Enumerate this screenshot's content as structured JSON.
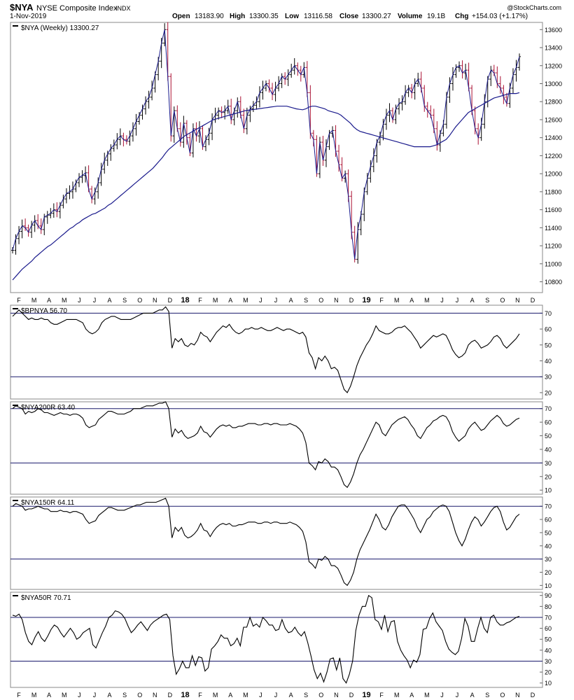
{
  "header": {
    "symbol": "$NYA",
    "name": "NYSE Composite Index",
    "exchange": "INDX",
    "date": "1-Nov-2019",
    "open_label": "Open",
    "open": "13183.90",
    "high_label": "High",
    "high": "13300.35",
    "low_label": "Low",
    "low": "13116.58",
    "close_label": "Close",
    "close": "13300.27",
    "volume_label": "Volume",
    "volume": "19.1B",
    "chg_label": "Chg",
    "chg": "+154.03 (+1.17%)",
    "watermark": "@StockCharts.com"
  },
  "colors": {
    "price_up": "#000000",
    "price_down": "#aa1133",
    "moving_average": "#1a1a8c",
    "price_line": "#1a1a8c",
    "reference_lines": "#1a1a6c",
    "indicator_line": "#000000",
    "panel_border": "#888888"
  },
  "x_axis": {
    "months": [
      "F",
      "M",
      "A",
      "M",
      "J",
      "J",
      "A",
      "S",
      "O",
      "N",
      "D",
      "18",
      "F",
      "M",
      "A",
      "M",
      "J",
      "J",
      "A",
      "S",
      "O",
      "N",
      "D",
      "19",
      "F",
      "M",
      "A",
      "M",
      "J",
      "J",
      "A",
      "S",
      "O",
      "N",
      "D"
    ]
  },
  "chart_data": [
    {
      "type": "line",
      "subtype": "weekly-ohlc-with-moving-average",
      "title": "$NYA (Weekly) 13300.27",
      "y_ticks": [
        10800,
        11000,
        11200,
        11400,
        11600,
        11800,
        12000,
        12200,
        12400,
        12600,
        12800,
        13000,
        13200,
        13400,
        13600
      ],
      "ylim": [
        10680,
        13680
      ],
      "grid": false,
      "series": [
        {
          "role": "price",
          "values": [
            11150,
            11280,
            11360,
            11420,
            11400,
            11350,
            11430,
            11480,
            11420,
            11380,
            11520,
            11540,
            11560,
            11600,
            11580,
            11650,
            11720,
            11780,
            11800,
            11830,
            11900,
            11960,
            11980,
            12010,
            11830,
            11720,
            11800,
            11900,
            12050,
            12150,
            12220,
            12280,
            12320,
            12380,
            12420,
            12380,
            12360,
            12420,
            12500,
            12580,
            12650,
            12720,
            12800,
            12850,
            12950,
            13100,
            13250,
            13450,
            13600,
            13080,
            12420,
            12700,
            12500,
            12350,
            12560,
            12400,
            12230,
            12500,
            12420,
            12500,
            12300,
            12380,
            12450,
            12600,
            12650,
            12700,
            12680,
            12700,
            12750,
            12600,
            12700,
            12800,
            12650,
            12500,
            12650,
            12720,
            12760,
            12800,
            12900,
            12950,
            13000,
            12950,
            12880,
            12950,
            13000,
            13080,
            13050,
            13100,
            13150,
            13200,
            13150,
            13100,
            13180,
            12900,
            12450,
            12380,
            12000,
            12350,
            12150,
            12300,
            12450,
            12480,
            12250,
            12100,
            11950,
            12000,
            11750,
            11350,
            11050,
            11380,
            11550,
            11800,
            11950,
            12080,
            12200,
            12350,
            12420,
            12550,
            12650,
            12700,
            12600,
            12720,
            12780,
            12800,
            12900,
            12950,
            12900,
            13000,
            13050,
            12950,
            12750,
            12700,
            12650,
            12500,
            12320,
            12450,
            12550,
            12850,
            13000,
            13100,
            13180,
            13200,
            13120,
            13150,
            12950,
            12700,
            12500,
            12400,
            12550,
            12800,
            13050,
            13150,
            13120,
            13000,
            12950,
            12850,
            12780,
            12950,
            13100,
            13180,
            13300
          ]
        },
        {
          "role": "moving-average",
          "values": [
            10820,
            10860,
            10900,
            10940,
            10970,
            11000,
            11030,
            11070,
            11100,
            11130,
            11160,
            11190,
            11210,
            11240,
            11270,
            11300,
            11330,
            11360,
            11390,
            11410,
            11440,
            11460,
            11490,
            11510,
            11530,
            11550,
            11560,
            11580,
            11600,
            11620,
            11650,
            11670,
            11700,
            11730,
            11760,
            11790,
            11820,
            11850,
            11880,
            11910,
            11940,
            11970,
            12000,
            12030,
            12060,
            12100,
            12140,
            12180,
            12230,
            12270,
            12300,
            12330,
            12360,
            12390,
            12420,
            12440,
            12460,
            12480,
            12500,
            12520,
            12540,
            12560,
            12580,
            12600,
            12610,
            12620,
            12630,
            12640,
            12650,
            12660,
            12670,
            12680,
            12690,
            12700,
            12705,
            12710,
            12715,
            12720,
            12725,
            12730,
            12735,
            12740,
            12745,
            12750,
            12750,
            12750,
            12750,
            12740,
            12730,
            12720,
            12715,
            12710,
            12720,
            12740,
            12750,
            12750,
            12740,
            12730,
            12720,
            12700,
            12690,
            12680,
            12670,
            12650,
            12620,
            12590,
            12560,
            12520,
            12490,
            12470,
            12460,
            12450,
            12440,
            12430,
            12420,
            12410,
            12400,
            12390,
            12380,
            12370,
            12360,
            12350,
            12340,
            12330,
            12320,
            12310,
            12300,
            12300,
            12300,
            12300,
            12300,
            12300,
            12310,
            12320,
            12340,
            12360,
            12380,
            12420,
            12470,
            12520,
            12560,
            12600,
            12640,
            12680,
            12700,
            12720,
            12740,
            12760,
            12780,
            12800,
            12820,
            12840,
            12850,
            12860,
            12870,
            12880,
            12890,
            12890,
            12890,
            12900
          ]
        }
      ]
    },
    {
      "type": "line",
      "title": "$BPNYA 56.70",
      "y_ticks": [
        20,
        30,
        40,
        50,
        60,
        70
      ],
      "reference_lines": [
        30,
        70
      ],
      "ylim": [
        16,
        75
      ],
      "values": [
        68,
        70,
        72,
        70,
        68,
        66,
        67,
        66,
        66,
        67,
        66,
        66,
        64,
        63,
        63,
        64,
        65,
        66,
        66,
        66,
        66,
        65,
        64,
        60,
        58,
        57,
        58,
        60,
        64,
        66,
        67,
        68,
        68,
        67,
        66,
        66,
        66,
        66,
        67,
        68,
        69,
        70,
        70,
        70,
        70,
        71,
        72,
        72,
        74,
        71,
        48,
        54,
        52,
        54,
        50,
        49,
        51,
        50,
        53,
        58,
        56,
        55,
        52,
        55,
        58,
        60,
        62,
        61,
        63,
        60,
        58,
        57,
        58,
        60,
        60,
        61,
        60,
        60,
        61,
        60,
        59,
        59,
        60,
        61,
        60,
        59,
        60,
        60,
        59,
        58,
        57,
        58,
        55,
        45,
        42,
        35,
        42,
        40,
        43,
        40,
        35,
        36,
        34,
        28,
        22,
        20,
        24,
        30,
        37,
        42,
        46,
        50,
        53,
        57,
        62,
        59,
        58,
        57,
        57,
        58,
        60,
        61,
        61,
        62,
        60,
        58,
        55,
        52,
        48,
        50,
        52,
        54,
        56,
        55,
        56,
        57,
        56,
        52,
        47,
        44,
        42,
        43,
        45,
        50,
        52,
        53,
        51,
        48,
        49,
        50,
        52,
        55,
        56,
        54,
        50,
        48,
        50,
        52,
        54,
        57
      ]
    },
    {
      "type": "line",
      "title": "$NYA200R 63.40",
      "y_ticks": [
        10,
        20,
        30,
        40,
        50,
        60,
        70
      ],
      "reference_lines": [
        30,
        70
      ],
      "ylim": [
        7,
        75
      ],
      "values": [
        70,
        72,
        71,
        70,
        66,
        68,
        67,
        68,
        70,
        69,
        67,
        67,
        66,
        65,
        66,
        67,
        66,
        66,
        65,
        66,
        66,
        65,
        63,
        58,
        56,
        57,
        58,
        62,
        64,
        66,
        68,
        68,
        67,
        66,
        66,
        66,
        67,
        68,
        70,
        70,
        70,
        71,
        72,
        72,
        72,
        73,
        74,
        74,
        75,
        70,
        49,
        55,
        52,
        54,
        50,
        48,
        49,
        50,
        52,
        57,
        53,
        52,
        49,
        52,
        55,
        57,
        58,
        57,
        58,
        56,
        56,
        57,
        57,
        58,
        59,
        59,
        59,
        58,
        58,
        59,
        59,
        58,
        59,
        59,
        58,
        58,
        58,
        59,
        58,
        57,
        55,
        52,
        45,
        30,
        28,
        25,
        31,
        30,
        33,
        31,
        27,
        27,
        25,
        20,
        14,
        12,
        16,
        22,
        30,
        36,
        40,
        45,
        50,
        55,
        60,
        58,
        52,
        50,
        54,
        58,
        60,
        62,
        63,
        64,
        62,
        58,
        55,
        50,
        48,
        52,
        56,
        58,
        61,
        62,
        64,
        65,
        64,
        60,
        53,
        49,
        46,
        48,
        50,
        55,
        58,
        60,
        57,
        54,
        55,
        58,
        61,
        63,
        65,
        63,
        59,
        57,
        58,
        60,
        62,
        63
      ]
    },
    {
      "type": "line",
      "title": "$NYA150R 64.11",
      "y_ticks": [
        10,
        20,
        30,
        40,
        50,
        60,
        70
      ],
      "reference_lines": [
        30,
        70
      ],
      "ylim": [
        7,
        77
      ],
      "values": [
        70,
        72,
        71,
        70,
        67,
        68,
        68,
        69,
        70,
        69,
        68,
        68,
        66,
        66,
        66,
        67,
        66,
        66,
        65,
        66,
        66,
        65,
        64,
        60,
        57,
        58,
        59,
        63,
        65,
        67,
        69,
        69,
        68,
        67,
        67,
        67,
        68,
        69,
        70,
        71,
        71,
        72,
        73,
        73,
        73,
        73,
        74,
        75,
        76,
        70,
        46,
        54,
        51,
        54,
        48,
        46,
        47,
        49,
        52,
        57,
        52,
        51,
        47,
        51,
        54,
        56,
        57,
        56,
        57,
        55,
        55,
        56,
        56,
        57,
        58,
        58,
        58,
        57,
        57,
        58,
        58,
        57,
        58,
        58,
        57,
        57,
        57,
        58,
        57,
        56,
        54,
        51,
        43,
        28,
        26,
        23,
        30,
        29,
        32,
        30,
        25,
        25,
        23,
        18,
        12,
        10,
        14,
        20,
        30,
        37,
        42,
        47,
        52,
        58,
        64,
        60,
        54,
        52,
        56,
        62,
        66,
        70,
        71,
        71,
        68,
        64,
        60,
        54,
        50,
        55,
        60,
        62,
        66,
        68,
        70,
        71,
        70,
        66,
        58,
        50,
        44,
        40,
        45,
        52,
        58,
        62,
        60,
        55,
        58,
        62,
        66,
        69,
        70,
        66,
        58,
        52,
        54,
        58,
        62,
        64
      ]
    },
    {
      "type": "line",
      "title": "$NYA50R 70.71",
      "y_ticks": [
        10,
        20,
        30,
        40,
        50,
        60,
        70,
        80,
        90
      ],
      "reference_lines": [
        30,
        70
      ],
      "ylim": [
        6,
        93
      ],
      "values": [
        72,
        71,
        73,
        68,
        56,
        48,
        45,
        52,
        57,
        51,
        48,
        53,
        59,
        63,
        61,
        56,
        52,
        56,
        60,
        56,
        50,
        52,
        56,
        58,
        60,
        45,
        42,
        49,
        56,
        62,
        70,
        72,
        76,
        75,
        73,
        69,
        62,
        56,
        59,
        63,
        66,
        62,
        58,
        63,
        66,
        68,
        70,
        72,
        73,
        68,
        35,
        18,
        23,
        30,
        24,
        24,
        35,
        26,
        34,
        33,
        21,
        24,
        41,
        44,
        48,
        54,
        51,
        51,
        44,
        46,
        51,
        44,
        61,
        61,
        70,
        62,
        64,
        61,
        70,
        67,
        63,
        63,
        58,
        59,
        68,
        60,
        56,
        57,
        61,
        56,
        53,
        57,
        47,
        35,
        22,
        14,
        19,
        11,
        20,
        32,
        33,
        22,
        33,
        14,
        10,
        18,
        30,
        58,
        72,
        80,
        80,
        90,
        88,
        68,
        66,
        59,
        72,
        57,
        66,
        67,
        48,
        40,
        35,
        31,
        24,
        31,
        29,
        36,
        59,
        60,
        69,
        74,
        66,
        62,
        58,
        48,
        41,
        38,
        36,
        39,
        51,
        69,
        62,
        48,
        48,
        60,
        70,
        60,
        56,
        70,
        72,
        66,
        63,
        63,
        65,
        66,
        68,
        70,
        71
      ]
    }
  ]
}
